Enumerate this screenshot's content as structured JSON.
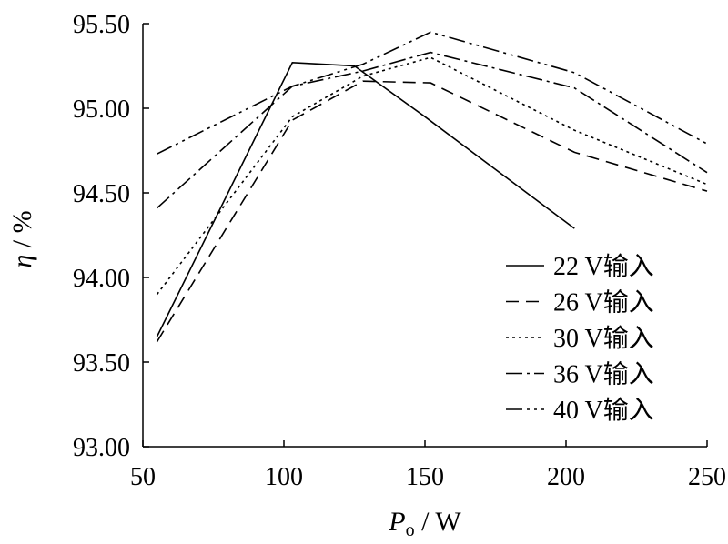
{
  "chart_data": {
    "type": "line",
    "xlabel": {
      "symbol": "P",
      "subscript": "o",
      "unit": " / W"
    },
    "ylabel": {
      "symbol": "η",
      "unit": " / %"
    },
    "xlim": [
      50,
      250
    ],
    "ylim": [
      93.0,
      95.5
    ],
    "xticks": [
      50,
      100,
      150,
      200,
      250
    ],
    "xtick_labels": [
      "50",
      "100",
      "150",
      "200",
      "250"
    ],
    "yticks": [
      93.0,
      93.5,
      94.0,
      94.5,
      95.0,
      95.5
    ],
    "ytick_labels": [
      "93.00",
      "93.50",
      "94.00",
      "94.50",
      "95.00",
      "95.50"
    ],
    "grid": false,
    "legend_position": "lower-right",
    "series": [
      {
        "name": "22 V输入",
        "dash": "solid",
        "x": [
          55,
          103,
          125,
          150,
          203
        ],
        "y": [
          93.65,
          95.27,
          95.25,
          94.95,
          94.29
        ]
      },
      {
        "name": "26 V输入",
        "dash": "dashed",
        "x": [
          55,
          103,
          128,
          152,
          203,
          250
        ],
        "y": [
          93.62,
          94.93,
          95.16,
          95.15,
          94.74,
          94.51
        ]
      },
      {
        "name": "30 V输入",
        "dash": "dotted",
        "x": [
          55,
          103,
          128,
          152,
          203,
          250
        ],
        "y": [
          93.9,
          94.95,
          95.19,
          95.3,
          94.87,
          94.55
        ]
      },
      {
        "name": "36 V输入",
        "dash": "dash-dot",
        "x": [
          55,
          103,
          128,
          152,
          203,
          250
        ],
        "y": [
          94.41,
          95.13,
          95.22,
          95.33,
          95.12,
          94.62
        ]
      },
      {
        "name": "40 V输入",
        "dash": "dash-dot-dot",
        "x": [
          55,
          103,
          128,
          152,
          203,
          250
        ],
        "y": [
          94.73,
          95.13,
          95.26,
          95.45,
          95.21,
          94.79
        ]
      }
    ]
  }
}
